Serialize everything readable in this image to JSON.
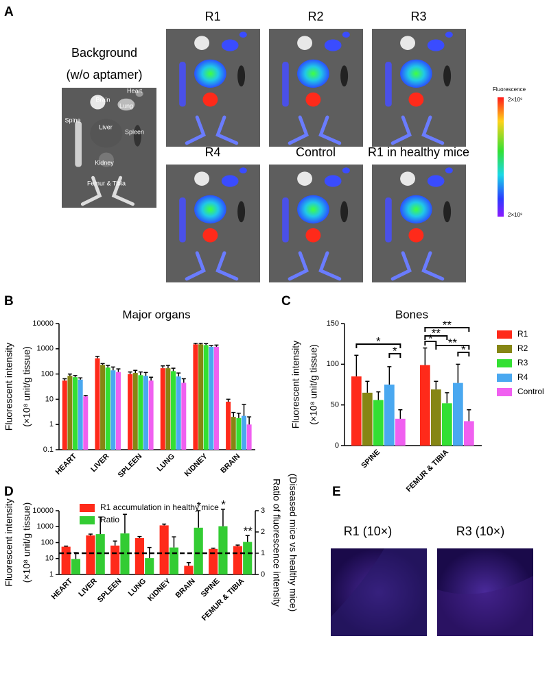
{
  "panel_labels": [
    "A",
    "B",
    "C",
    "D",
    "E"
  ],
  "panel_a": {
    "background_title": "Background",
    "background_subtitle": "(w/o aptamer)",
    "organ_labels": [
      "Brain",
      "Heart",
      "Lung",
      "Liver",
      "Spleen",
      "Spine",
      "Kidney",
      "Femur & Tibia"
    ],
    "image_titles": [
      "R1",
      "R2",
      "R3",
      "R4",
      "Control",
      "R1 in healthy mice"
    ],
    "colorbar": {
      "title": "Fluorescence",
      "max_label": "2×10⁹",
      "min_label": "2×10⁸"
    }
  },
  "chart_data": [
    {
      "type": "bar",
      "title": "Major organs",
      "ylabel": [
        "Fluorescent intensity",
        "(×10⁸ unit/g tissue)"
      ],
      "log_scale": true,
      "categories": [
        "HEART",
        "LIVER",
        "SPLEEN",
        "LUNG",
        "KIDNEY",
        "BRAIN"
      ],
      "ylim": [
        0.1,
        10000
      ],
      "yticks": [
        0.1,
        1,
        10,
        100,
        1000,
        10000
      ],
      "series": [
        {
          "color": "#ff2a1a",
          "values": [
            55,
            420,
            100,
            170,
            1500,
            8
          ],
          "errors": [
            10,
            80,
            20,
            40,
            150,
            2
          ]
        },
        {
          "color": "#868614",
          "values": [
            85,
            230,
            110,
            170,
            1500,
            2
          ],
          "errors": [
            15,
            30,
            30,
            50,
            150,
            1
          ]
        },
        {
          "color": "#33e033",
          "values": [
            75,
            180,
            90,
            130,
            1400,
            1.8
          ],
          "errors": [
            12,
            40,
            30,
            40,
            200,
            1
          ]
        },
        {
          "color": "#4aa8f0",
          "values": [
            60,
            140,
            85,
            80,
            1200,
            2.2
          ],
          "errors": [
            10,
            50,
            30,
            30,
            150,
            4
          ]
        },
        {
          "color": "#f060f0",
          "values": [
            13,
            120,
            55,
            45,
            1200,
            1
          ],
          "errors": [
            1,
            40,
            20,
            20,
            200,
            1
          ]
        }
      ]
    },
    {
      "type": "bar",
      "title": "Bones",
      "ylabel": [
        "Fluorescent intensity",
        "(×10⁸ unit/g tissue)"
      ],
      "log_scale": false,
      "categories": [
        "SPINE",
        "FEMUR & TIBIA"
      ],
      "ylim": [
        0,
        150
      ],
      "yticks": [
        0,
        50,
        100,
        150
      ],
      "legend": "right",
      "series": [
        {
          "name": "R1",
          "color": "#ff2a1a",
          "values": [
            85,
            99
          ],
          "errors": [
            26,
            21
          ]
        },
        {
          "name": "R2",
          "color": "#868614",
          "values": [
            65,
            69
          ],
          "errors": [
            14,
            10
          ]
        },
        {
          "name": "R3",
          "color": "#33e033",
          "values": [
            56,
            52
          ],
          "errors": [
            10,
            13
          ]
        },
        {
          "name": "R4",
          "color": "#4aa8f0",
          "values": [
            75,
            77
          ],
          "errors": [
            22,
            23
          ]
        },
        {
          "name": "Control",
          "color": "#f060f0",
          "values": [
            33,
            30
          ],
          "errors": [
            11,
            14
          ]
        }
      ],
      "significance_labels": [
        "*",
        "*",
        "**",
        "*",
        "**",
        "**",
        "*"
      ]
    },
    {
      "type": "bar",
      "ylabel": [
        "Fluorescent intensity",
        "(×10⁸ unit/g tissue)"
      ],
      "log_scale": true,
      "y2label": [
        "Ratio of fluorescence intensity",
        "(Diseased mice vs healthy mice)"
      ],
      "categories": [
        "HEART",
        "LIVER",
        "SPLEEN",
        "LUNG",
        "KIDNEY",
        "BRAIN",
        "SPINE",
        "FEMUR & TIBIA"
      ],
      "ylim": [
        1,
        10000
      ],
      "yticks": [
        1,
        10,
        100,
        1000,
        10000
      ],
      "y2lim": [
        0,
        3
      ],
      "y2ticks": [
        0,
        1,
        2,
        3
      ],
      "legend": "top-left",
      "reference_line": 1,
      "series": [
        {
          "name": "R1 accumulation in healthy mice",
          "color": "#ff2a1a",
          "values": [
            55,
            280,
            65,
            190,
            1200,
            3.5,
            40,
            60
          ],
          "errors": [
            5,
            60,
            60,
            50,
            250,
            2,
            5,
            10
          ]
        },
        {
          "name": "Ratio",
          "color": "#33cc33",
          "axis": "y2",
          "values": [
            0.73,
            1.9,
            1.93,
            0.77,
            1.27,
            2.2,
            2.27,
            1.53
          ],
          "errors": [
            0.3,
            0.8,
            0.9,
            0.5,
            0.5,
            0.8,
            0.8,
            0.3
          ]
        }
      ],
      "star_labels": [
        null,
        null,
        null,
        null,
        null,
        "*",
        "*",
        "**"
      ]
    }
  ],
  "panel_e": {
    "image_titles": [
      "R1 (10×)",
      "R3 (10×)"
    ]
  }
}
